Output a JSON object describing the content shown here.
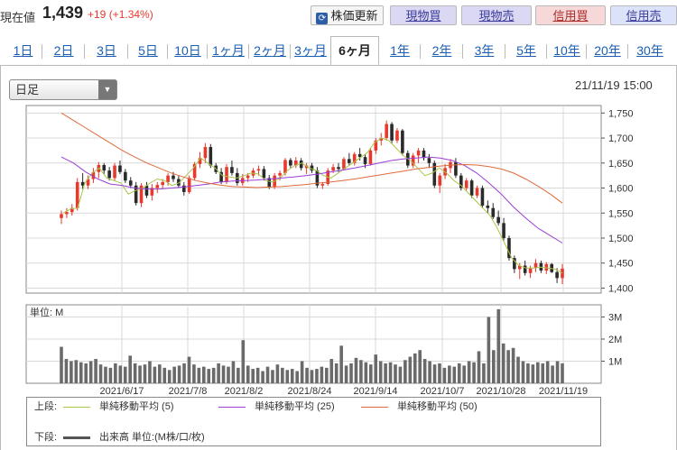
{
  "header": {
    "price_label": "現在値",
    "price": "1,439",
    "change": "+19 (+1.34%)",
    "refresh_label": "株価更新",
    "buttons": [
      "現物買",
      "現物売",
      "信用買",
      "信用売"
    ]
  },
  "tabs": [
    "1日",
    "2日",
    "3日",
    "5日",
    "10日",
    "1ヶ月",
    "2ヶ月",
    "3ヶ月",
    "6ヶ月",
    "1年",
    "2年",
    "3年",
    "5年",
    "10年",
    "20年",
    "30年"
  ],
  "active_tab": "6ヶ月",
  "chart_controls": {
    "period_select": "日足",
    "datetime": "21/11/19 15:00"
  },
  "chart_data": {
    "type": "candlestick",
    "price_axis": {
      "ticks": [
        "1,750",
        "1,700",
        "1,650",
        "1,600",
        "1,550",
        "1,500",
        "1,450",
        "1,400"
      ],
      "ylim": [
        1390,
        1765
      ]
    },
    "volume_axis": {
      "label": "単位: M",
      "ticks": [
        "3M",
        "2M",
        "1M"
      ],
      "ylim": [
        0,
        3.55
      ]
    },
    "x_labels": [
      "2021/6/17",
      "2021/7/8",
      "2021/8/2",
      "2021/8/24",
      "2021/9/14",
      "2021/10/7",
      "2021/10/28",
      "2021/11/19"
    ],
    "colors": {
      "up": "#e8392d",
      "down": "#2a2a2a",
      "ma5": "#a8c84a",
      "ma25": "#9a3fd6",
      "ma50": "#e06a3a",
      "volume": "#6a6a6a"
    },
    "candles": [
      [
        1540,
        1555,
        1528,
        1548
      ],
      [
        1548,
        1560,
        1540,
        1552
      ],
      [
        1552,
        1568,
        1545,
        1560
      ],
      [
        1560,
        1620,
        1555,
        1612
      ],
      [
        1612,
        1630,
        1598,
        1605
      ],
      [
        1605,
        1625,
        1598,
        1618
      ],
      [
        1618,
        1640,
        1610,
        1632
      ],
      [
        1632,
        1652,
        1620,
        1646
      ],
      [
        1646,
        1650,
        1628,
        1635
      ],
      [
        1635,
        1642,
        1615,
        1620
      ],
      [
        1620,
        1650,
        1615,
        1645
      ],
      [
        1645,
        1655,
        1628,
        1632
      ],
      [
        1632,
        1638,
        1610,
        1615
      ],
      [
        1615,
        1622,
        1600,
        1605
      ],
      [
        1605,
        1612,
        1565,
        1570
      ],
      [
        1570,
        1610,
        1562,
        1605
      ],
      [
        1605,
        1612,
        1580,
        1585
      ],
      [
        1585,
        1608,
        1575,
        1600
      ],
      [
        1600,
        1612,
        1590,
        1606
      ],
      [
        1606,
        1618,
        1598,
        1612
      ],
      [
        1612,
        1630,
        1605,
        1625
      ],
      [
        1625,
        1632,
        1612,
        1618
      ],
      [
        1618,
        1625,
        1600,
        1605
      ],
      [
        1605,
        1612,
        1585,
        1592
      ],
      [
        1592,
        1625,
        1588,
        1620
      ],
      [
        1620,
        1652,
        1615,
        1648
      ],
      [
        1648,
        1672,
        1640,
        1660
      ],
      [
        1660,
        1690,
        1650,
        1682
      ],
      [
        1682,
        1688,
        1640,
        1645
      ],
      [
        1645,
        1650,
        1628,
        1632
      ],
      [
        1632,
        1640,
        1608,
        1612
      ],
      [
        1612,
        1648,
        1608,
        1642
      ],
      [
        1642,
        1655,
        1625,
        1630
      ],
      [
        1630,
        1640,
        1605,
        1610
      ],
      [
        1610,
        1628,
        1605,
        1620
      ],
      [
        1620,
        1630,
        1612,
        1625
      ],
      [
        1625,
        1640,
        1620,
        1635
      ],
      [
        1635,
        1645,
        1625,
        1638
      ],
      [
        1638,
        1644,
        1615,
        1620
      ],
      [
        1620,
        1626,
        1598,
        1602
      ],
      [
        1602,
        1630,
        1598,
        1625
      ],
      [
        1625,
        1635,
        1615,
        1630
      ],
      [
        1630,
        1660,
        1625,
        1656
      ],
      [
        1656,
        1660,
        1640,
        1645
      ],
      [
        1645,
        1662,
        1640,
        1655
      ],
      [
        1655,
        1660,
        1635,
        1640
      ],
      [
        1640,
        1650,
        1628,
        1645
      ],
      [
        1645,
        1650,
        1630,
        1635
      ],
      [
        1635,
        1642,
        1600,
        1605
      ],
      [
        1605,
        1612,
        1598,
        1608
      ],
      [
        1608,
        1640,
        1605,
        1635
      ],
      [
        1635,
        1648,
        1630,
        1642
      ],
      [
        1642,
        1650,
        1632,
        1638
      ],
      [
        1638,
        1662,
        1635,
        1658
      ],
      [
        1658,
        1670,
        1645,
        1650
      ],
      [
        1650,
        1672,
        1645,
        1668
      ],
      [
        1668,
        1680,
        1655,
        1662
      ],
      [
        1662,
        1668,
        1640,
        1648
      ],
      [
        1648,
        1680,
        1645,
        1675
      ],
      [
        1675,
        1700,
        1668,
        1695
      ],
      [
        1695,
        1710,
        1685,
        1700
      ],
      [
        1700,
        1735,
        1695,
        1728
      ],
      [
        1728,
        1732,
        1690,
        1695
      ],
      [
        1695,
        1720,
        1690,
        1715
      ],
      [
        1715,
        1718,
        1665,
        1670
      ],
      [
        1670,
        1675,
        1640,
        1645
      ],
      [
        1645,
        1670,
        1640,
        1665
      ],
      [
        1665,
        1680,
        1650,
        1675
      ],
      [
        1675,
        1680,
        1655,
        1660
      ],
      [
        1660,
        1668,
        1640,
        1650
      ],
      [
        1650,
        1655,
        1600,
        1605
      ],
      [
        1605,
        1630,
        1590,
        1625
      ],
      [
        1625,
        1648,
        1618,
        1640
      ],
      [
        1640,
        1658,
        1630,
        1652
      ],
      [
        1652,
        1660,
        1620,
        1625
      ],
      [
        1625,
        1630,
        1595,
        1600
      ],
      [
        1600,
        1620,
        1595,
        1615
      ],
      [
        1615,
        1618,
        1580,
        1585
      ],
      [
        1585,
        1605,
        1580,
        1600
      ],
      [
        1600,
        1605,
        1560,
        1565
      ],
      [
        1565,
        1575,
        1550,
        1560
      ],
      [
        1560,
        1570,
        1538,
        1542
      ],
      [
        1542,
        1555,
        1525,
        1530
      ],
      [
        1530,
        1540,
        1495,
        1500
      ],
      [
        1500,
        1505,
        1455,
        1460
      ],
      [
        1460,
        1465,
        1430,
        1438
      ],
      [
        1438,
        1450,
        1418,
        1445
      ],
      [
        1445,
        1455,
        1425,
        1430
      ],
      [
        1430,
        1445,
        1420,
        1440
      ],
      [
        1440,
        1458,
        1432,
        1450
      ],
      [
        1450,
        1455,
        1430,
        1435
      ],
      [
        1435,
        1452,
        1428,
        1448
      ],
      [
        1448,
        1450,
        1430,
        1432
      ],
      [
        1432,
        1440,
        1410,
        1420
      ],
      [
        1420,
        1448,
        1408,
        1439
      ]
    ],
    "volume": [
      1.65,
      1.1,
      1.0,
      1.05,
      0.95,
      0.9,
      1.0,
      1.1,
      0.85,
      0.75,
      0.7,
      0.9,
      0.8,
      0.75,
      1.25,
      0.9,
      0.8,
      0.85,
      1.0,
      0.75,
      0.85,
      0.7,
      0.6,
      0.75,
      0.8,
      0.9,
      1.2,
      0.85,
      0.7,
      0.75,
      0.65,
      0.7,
      0.9,
      0.8,
      0.75,
      1.0,
      0.7,
      1.95,
      0.8,
      0.65,
      0.7,
      0.55,
      0.75,
      0.6,
      0.85,
      0.7,
      0.6,
      0.65,
      0.55,
      1.0,
      0.7,
      0.6,
      0.65,
      0.75,
      0.7,
      1.1,
      0.9,
      1.7,
      0.8,
      0.9,
      1.15,
      1.05,
      0.95,
      0.85,
      1.3,
      1.0,
      0.9,
      0.95,
      0.85,
      0.75,
      1.05,
      1.2,
      1.35,
      1.5,
      1.1,
      1.0,
      0.85,
      0.9,
      0.7,
      0.8,
      0.75,
      0.9,
      0.8,
      1.0,
      0.95,
      1.45,
      0.9,
      3.0,
      1.5,
      3.35,
      1.8,
      1.5,
      1.6,
      1.2,
      1.0,
      0.9,
      0.85,
      0.95,
      0.9,
      1.0,
      0.8,
      1.0,
      0.9
    ],
    "ma5": [
      [
        1550,
        1558
      ],
      [
        1560,
        1610
      ],
      [
        1630,
        1640
      ],
      [
        1620,
        1615
      ],
      [
        1610,
        1588
      ],
      [
        1595,
        1600
      ],
      [
        1610,
        1618
      ],
      [
        1615,
        1605
      ],
      [
        1610,
        1625
      ],
      [
        1640,
        1660
      ],
      [
        1650,
        1640
      ],
      [
        1625,
        1622
      ],
      [
        1620,
        1625
      ],
      [
        1630,
        1628
      ],
      [
        1615,
        1612
      ],
      [
        1620,
        1635
      ],
      [
        1645,
        1650
      ],
      [
        1640,
        1635
      ],
      [
        1625,
        1620
      ],
      [
        1630,
        1640
      ],
      [
        1650,
        1660
      ],
      [
        1670,
        1690
      ],
      [
        1700,
        1695
      ],
      [
        1680,
        1665
      ],
      [
        1655,
        1640
      ],
      [
        1625,
        1630
      ],
      [
        1640,
        1630
      ],
      [
        1615,
        1605
      ],
      [
        1590,
        1575
      ],
      [
        1560,
        1545
      ],
      [
        1520,
        1490
      ],
      [
        1460,
        1445
      ],
      [
        1440,
        1440
      ],
      [
        1442,
        1440
      ],
      [
        1438,
        1430
      ]
    ],
    "ma25": [
      1662,
      1650,
      1632,
      1618,
      1608,
      1605,
      1600,
      1598,
      1598,
      1600,
      1602,
      1605,
      1608,
      1612,
      1614,
      1615,
      1616,
      1618,
      1620,
      1622,
      1625,
      1628,
      1632,
      1636,
      1640,
      1645,
      1650,
      1655,
      1658,
      1660,
      1662,
      1660,
      1655,
      1645,
      1630,
      1610,
      1588,
      1562,
      1540,
      1520,
      1505,
      1490
    ],
    "ma50": [
      1750,
      1735,
      1720,
      1705,
      1690,
      1675,
      1662,
      1650,
      1640,
      1630,
      1622,
      1615,
      1610,
      1606,
      1603,
      1602,
      1601,
      1602,
      1603,
      1605,
      1607,
      1610,
      1612,
      1615,
      1618,
      1622,
      1626,
      1630,
      1634,
      1638,
      1641,
      1644,
      1646,
      1647,
      1646,
      1643,
      1638,
      1630,
      1618,
      1604,
      1588,
      1570
    ]
  },
  "legend": {
    "upper_label": "上段:",
    "lower_label": "下段:",
    "items": [
      {
        "name": "単純移動平均 (5)",
        "color": "#a8c84a"
      },
      {
        "name": "単純移動平均 (25)",
        "color": "#9a3fd6"
      },
      {
        "name": "単純移動平均 (50)",
        "color": "#e06a3a"
      }
    ],
    "volume_item": "出来高 単位:(M株/口/枚)"
  }
}
